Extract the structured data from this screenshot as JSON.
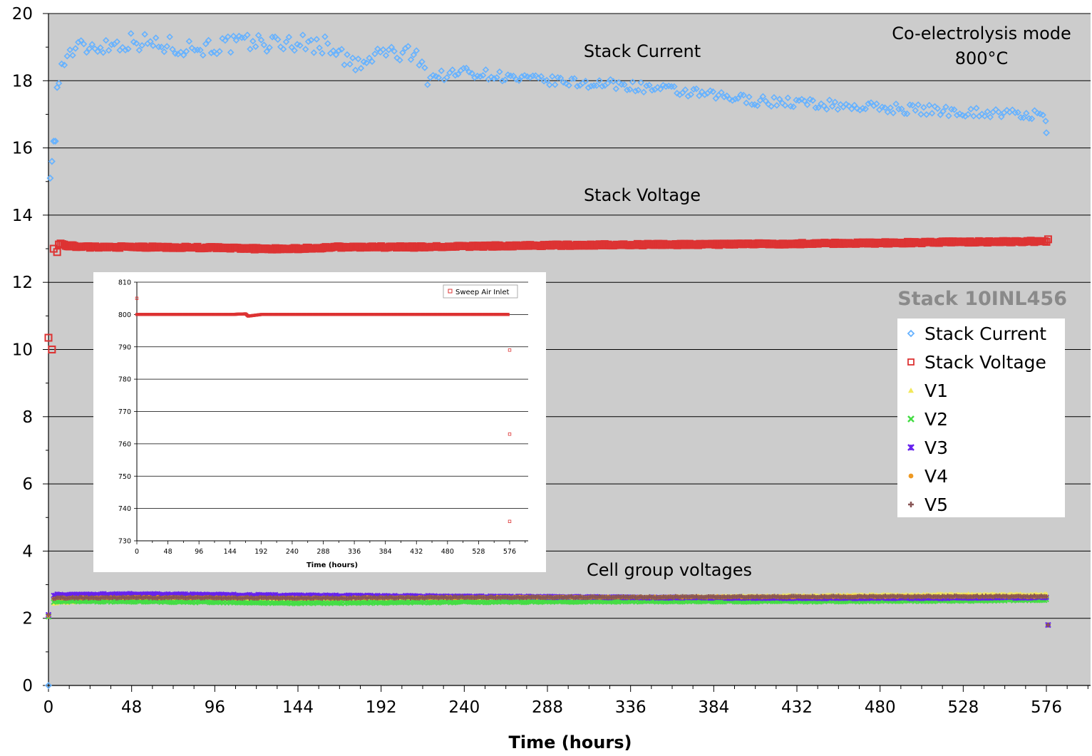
{
  "chart_data": [
    {
      "type": "scatter",
      "title": "",
      "xlabel": "Time (hours)",
      "ylabel": "",
      "xlim": [
        0,
        576
      ],
      "ylim": [
        0,
        20
      ],
      "x_ticks": [
        0,
        48,
        96,
        144,
        192,
        240,
        288,
        336,
        384,
        432,
        480,
        528,
        576
      ],
      "y_ticks": [
        0,
        2,
        4,
        6,
        8,
        10,
        12,
        14,
        16,
        18,
        20
      ],
      "grid": "horizontal",
      "background": "#cccccc",
      "legend_position": "right",
      "annotations": {
        "mode_line1": "Co-electrolysis mode",
        "mode_line2": "800°C",
        "stack_current_label": "Stack Current",
        "stack_voltage_label": "Stack Voltage",
        "cell_group_label": "Cell group voltages",
        "stack_id": "Stack 10INL456"
      },
      "series": [
        {
          "name": "Stack Current",
          "color": "#66b2ff",
          "marker": "diamond",
          "points": [
            [
              0,
              0
            ],
            [
              1,
              15.1
            ],
            [
              2,
              15.6
            ],
            [
              3,
              16.2
            ],
            [
              4,
              16.2
            ],
            [
              5,
              17.8
            ],
            [
              6,
              18.2
            ],
            [
              8,
              18.4
            ],
            [
              10,
              18.7
            ],
            [
              14,
              18.9
            ],
            [
              20,
              19.0
            ],
            [
              30,
              19.05
            ],
            [
              40,
              19.1
            ],
            [
              50,
              19.2
            ],
            [
              60,
              19.1
            ],
            [
              70,
              19.05
            ],
            [
              80,
              19.0
            ],
            [
              90,
              19.0
            ],
            [
              100,
              19.05
            ],
            [
              110,
              19.1
            ],
            [
              120,
              19.15
            ],
            [
              130,
              19.1
            ],
            [
              140,
              19.15
            ],
            [
              150,
              19.1
            ],
            [
              160,
              19.05
            ],
            [
              165,
              19.0
            ],
            [
              168,
              18.95
            ],
            [
              170,
              18.6
            ],
            [
              175,
              18.5
            ],
            [
              180,
              18.45
            ],
            [
              185,
              18.5
            ],
            [
              190,
              18.85
            ],
            [
              195,
              18.85
            ],
            [
              200,
              18.8
            ],
            [
              210,
              18.75
            ],
            [
              216,
              18.7
            ],
            [
              218,
              18.1
            ],
            [
              225,
              18.15
            ],
            [
              235,
              18.2
            ],
            [
              240,
              18.3
            ],
            [
              250,
              18.2
            ],
            [
              260,
              18.15
            ],
            [
              270,
              18.05
            ],
            [
              288,
              18.0
            ],
            [
              300,
              17.95
            ],
            [
              320,
              17.9
            ],
            [
              336,
              17.85
            ],
            [
              360,
              17.7
            ],
            [
              384,
              17.55
            ],
            [
              410,
              17.4
            ],
            [
              432,
              17.35
            ],
            [
              460,
              17.25
            ],
            [
              480,
              17.2
            ],
            [
              500,
              17.15
            ],
            [
              520,
              17.1
            ],
            [
              540,
              17.05
            ],
            [
              560,
              17.0
            ],
            [
              575,
              16.95
            ],
            [
              576,
              16.45
            ]
          ]
        },
        {
          "name": "Stack Voltage",
          "color": "#dd3333",
          "marker": "square",
          "points": [
            [
              0,
              10.35
            ],
            [
              2,
              10.0
            ],
            [
              3,
              13.0
            ],
            [
              5,
              12.9
            ],
            [
              6,
              13.15
            ],
            [
              10,
              13.1
            ],
            [
              20,
              13.05
            ],
            [
              48,
              13.05
            ],
            [
              96,
              13.03
            ],
            [
              120,
              13.0
            ],
            [
              144,
              13.0
            ],
            [
              168,
              13.05
            ],
            [
              192,
              13.05
            ],
            [
              216,
              13.05
            ],
            [
              240,
              13.07
            ],
            [
              288,
              13.1
            ],
            [
              336,
              13.12
            ],
            [
              384,
              13.13
            ],
            [
              432,
              13.15
            ],
            [
              480,
              13.17
            ],
            [
              528,
              13.2
            ],
            [
              576,
              13.22
            ],
            [
              577,
              13.28
            ]
          ]
        },
        {
          "name": "V1",
          "color": "#f2e85a",
          "marker": "triangle",
          "points": [
            [
              0,
              2.05
            ],
            [
              3,
              2.45
            ],
            [
              48,
              2.58
            ],
            [
              144,
              2.55
            ],
            [
              240,
              2.6
            ],
            [
              336,
              2.63
            ],
            [
              432,
              2.68
            ],
            [
              528,
              2.72
            ],
            [
              576,
              2.72
            ]
          ]
        },
        {
          "name": "V2",
          "color": "#44dd44",
          "marker": "x",
          "points": [
            [
              0,
              2.05
            ],
            [
              3,
              2.5
            ],
            [
              48,
              2.5
            ],
            [
              144,
              2.45
            ],
            [
              240,
              2.48
            ],
            [
              336,
              2.5
            ],
            [
              432,
              2.5
            ],
            [
              528,
              2.52
            ],
            [
              576,
              2.55
            ]
          ]
        },
        {
          "name": "V3",
          "color": "#6622ee",
          "marker": "star",
          "points": [
            [
              0,
              2.1
            ],
            [
              3,
              2.7
            ],
            [
              48,
              2.72
            ],
            [
              144,
              2.68
            ],
            [
              240,
              2.65
            ],
            [
              336,
              2.62
            ],
            [
              432,
              2.6
            ],
            [
              528,
              2.6
            ],
            [
              576,
              2.62
            ],
            [
              577,
              1.8
            ]
          ]
        },
        {
          "name": "V4",
          "color": "#ee9922",
          "marker": "circle",
          "points": [
            [
              0,
              2.08
            ],
            [
              3,
              2.6
            ],
            [
              48,
              2.62
            ],
            [
              144,
              2.6
            ],
            [
              240,
              2.62
            ],
            [
              336,
              2.63
            ],
            [
              432,
              2.64
            ],
            [
              528,
              2.65
            ],
            [
              576,
              2.65
            ]
          ]
        },
        {
          "name": "V5",
          "color": "#885555",
          "marker": "plus",
          "points": [
            [
              0,
              2.1
            ],
            [
              3,
              2.6
            ],
            [
              48,
              2.62
            ],
            [
              144,
              2.6
            ],
            [
              240,
              2.62
            ],
            [
              336,
              2.63
            ],
            [
              432,
              2.64
            ],
            [
              528,
              2.65
            ],
            [
              576,
              2.65
            ],
            [
              577,
              1.8
            ]
          ]
        }
      ]
    },
    {
      "type": "scatter",
      "title": "",
      "xlabel": "Time (hours)",
      "ylabel": "",
      "xlim": [
        0,
        576
      ],
      "ylim": [
        730,
        810
      ],
      "x_ticks": [
        0,
        48,
        96,
        144,
        192,
        240,
        288,
        336,
        384,
        432,
        480,
        528,
        576
      ],
      "y_ticks": [
        730,
        740,
        750,
        760,
        770,
        780,
        790,
        800,
        810
      ],
      "grid": "horizontal",
      "background": "#ffffff",
      "legend_position": "top-right",
      "series": [
        {
          "name": "Sweep Air Inlet",
          "color": "#dd3333",
          "marker": "square",
          "points": [
            [
              0,
              805
            ],
            [
              0,
              800
            ],
            [
              48,
              800
            ],
            [
              96,
              800
            ],
            [
              144,
              800
            ],
            [
              168,
              800.2
            ],
            [
              172,
              799.5
            ],
            [
              192,
              800
            ],
            [
              240,
              800
            ],
            [
              288,
              800
            ],
            [
              336,
              800
            ],
            [
              384,
              800
            ],
            [
              432,
              800
            ],
            [
              480,
              800
            ],
            [
              528,
              800
            ],
            [
              570,
              800
            ],
            [
              574,
              800
            ],
            [
              576,
              789
            ],
            [
              576,
              763
            ],
            [
              576,
              736
            ]
          ]
        }
      ]
    }
  ]
}
